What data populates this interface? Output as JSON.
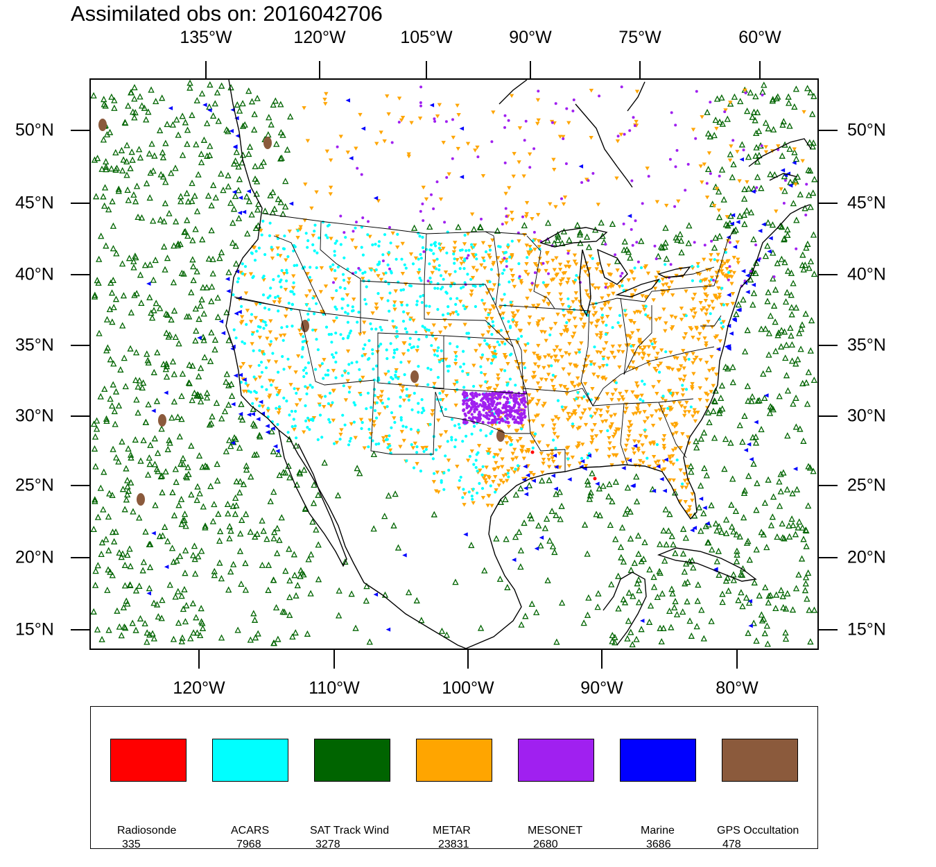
{
  "title": "Assimilated obs on: 2016042706",
  "axes": {
    "top_lon_labels": [
      "135°W",
      "120°W",
      "105°W",
      "90°W",
      "75°W",
      "60°W"
    ],
    "bottom_lon_labels": [
      "120°W",
      "110°W",
      "100°W",
      "90°W",
      "80°W"
    ],
    "lat_labels": [
      "50°N",
      "45°N",
      "40°N",
      "35°N",
      "30°N",
      "25°N",
      "20°N",
      "15°N"
    ]
  },
  "map": {
    "projection": "Lambert conformal",
    "extent": {
      "lon_min": -128,
      "lon_max": -74,
      "lat_min": 14,
      "lat_max": 53
    }
  },
  "colors": {
    "radiosonde": "#ff0000",
    "acars": "#00ffff",
    "sat_track_wind": "#006400",
    "metar": "#ffa500",
    "mesonet": "#a020f0",
    "marine": "#0000ff",
    "gps_occultation": "#8b5a3c"
  },
  "legend": [
    {
      "name": "Radiosonde",
      "count": "335",
      "color": "#ff0000"
    },
    {
      "name": "ACARS",
      "count": "7968",
      "color": "#00ffff"
    },
    {
      "name": "SAT Track Wind",
      "count": "3278",
      "color": "#006400"
    },
    {
      "name": "METAR",
      "count": "23831",
      "color": "#ffa500"
    },
    {
      "name": "MESONET",
      "count": "2680",
      "color": "#a020f0"
    },
    {
      "name": "Marine",
      "count": "3686",
      "color": "#0000ff"
    },
    {
      "name": "GPS Occultation",
      "count": "478",
      "color": "#8b5a3c"
    }
  ]
}
